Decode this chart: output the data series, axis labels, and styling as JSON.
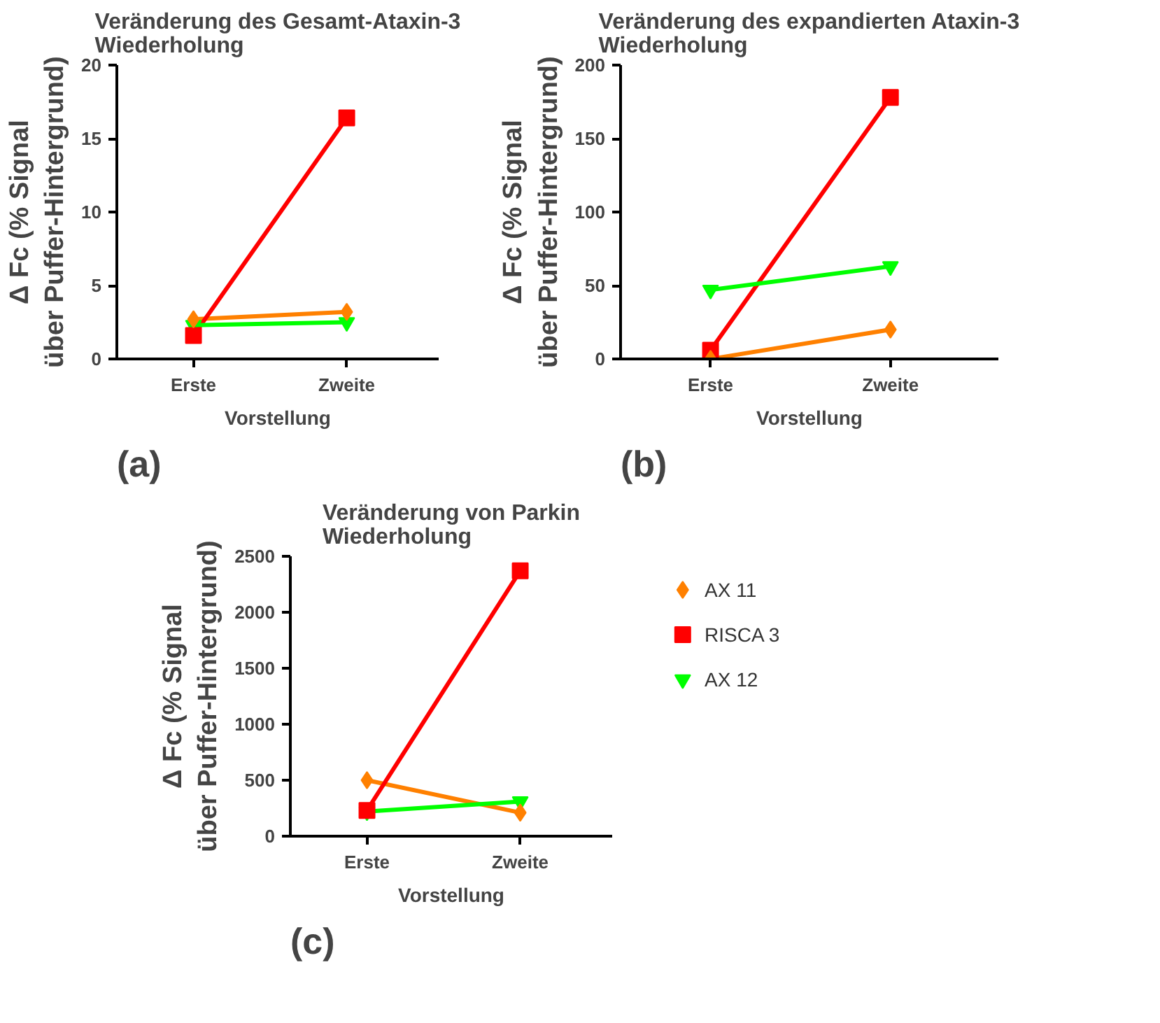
{
  "chart_data": [
    {
      "type": "line",
      "title": "Veränderung des Gesamt-Ataxin-3\nWiederholung",
      "xlabel": "Vorstellung",
      "ylabel": "Δ Fc (% Signal\nüber Puffer-Hintergrund)",
      "categories": [
        "Erste",
        "Zweite"
      ],
      "ylim": [
        0,
        20
      ],
      "yticks": [
        0,
        5,
        10,
        15,
        20
      ],
      "grid": false,
      "annotations": [
        "(a)"
      ],
      "series": [
        {
          "color": "#ff8000",
          "marker": "diamond",
          "values": [
            2.7,
            3.2
          ]
        },
        {
          "color": "#ff0000",
          "marker": "square",
          "values": [
            1.6,
            16.4
          ]
        },
        {
          "color": "#00ff00",
          "marker": "triangle",
          "values": [
            2.3,
            2.5
          ]
        }
      ]
    },
    {
      "type": "line",
      "title": "Veränderung des expandierten Ataxin-3\nWiederholung",
      "xlabel": "Vorstellung",
      "ylabel": "Δ Fc (% Signal\nüber Puffer-Hintergrund)",
      "categories": [
        "Erste",
        "Zweite"
      ],
      "ylim": [
        0,
        200
      ],
      "yticks": [
        0,
        50,
        100,
        150,
        200
      ],
      "grid": false,
      "annotations": [
        "(b)"
      ],
      "series": [
        {
          "color": "#ff8000",
          "marker": "diamond",
          "values": [
            0,
            20
          ]
        },
        {
          "color": "#ff0000",
          "marker": "square",
          "values": [
            6,
            178
          ]
        },
        {
          "color": "#00ff00",
          "marker": "triangle",
          "values": [
            47,
            63
          ]
        }
      ]
    },
    {
      "type": "line",
      "title": "Veränderung von Parkin\nWiederholung",
      "xlabel": "Vorstellung",
      "ylabel": "Δ Fc (% Signal\nüber Puffer-Hintergrund)",
      "categories": [
        "Erste",
        "Zweite"
      ],
      "ylim": [
        0,
        2500
      ],
      "yticks": [
        0,
        500,
        1000,
        1500,
        2000,
        2500
      ],
      "grid": false,
      "legend": "right",
      "annotations": [
        "(c)"
      ],
      "series": [
        {
          "name": "AX 11",
          "color": "#ff8000",
          "marker": "diamond",
          "values": [
            500,
            210
          ]
        },
        {
          "name": "RISCA 3",
          "color": "#ff0000",
          "marker": "square",
          "values": [
            230,
            2370
          ]
        },
        {
          "name": "AX 12",
          "color": "#00ff00",
          "marker": "triangle",
          "values": [
            220,
            310
          ]
        }
      ]
    }
  ]
}
